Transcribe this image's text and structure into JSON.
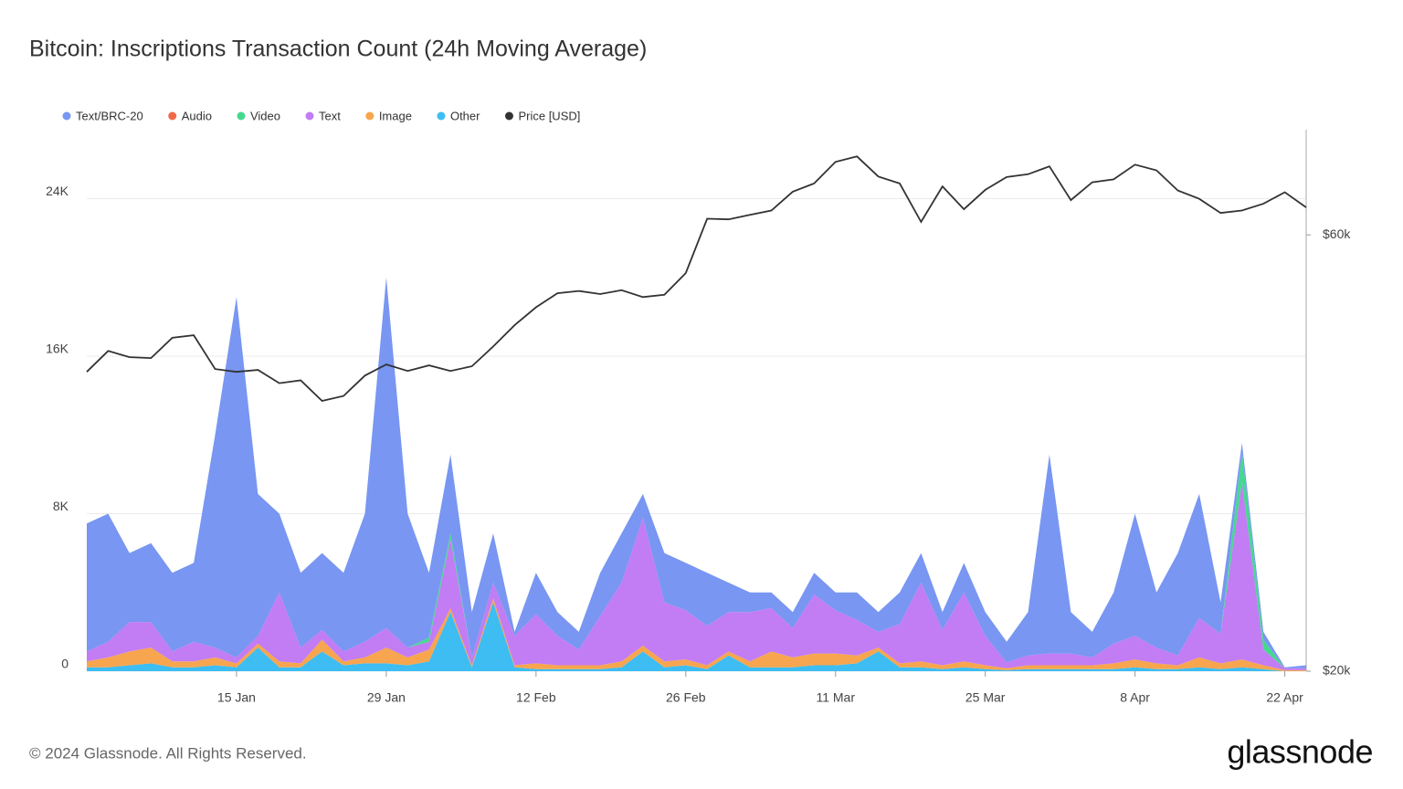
{
  "chart_data": {
    "type": "stacked-area",
    "title": "Bitcoin: Inscriptions Transaction Count (24h Moving Average)",
    "legend": "top-left",
    "grid": true,
    "categories": [
      null,
      null,
      null,
      null,
      null,
      null,
      null,
      "15 Jan",
      null,
      null,
      null,
      null,
      null,
      null,
      "29 Jan",
      null,
      null,
      null,
      null,
      null,
      null,
      "12 Feb",
      null,
      null,
      null,
      null,
      null,
      null,
      "26 Feb",
      null,
      null,
      null,
      null,
      null,
      null,
      "11 Mar",
      null,
      null,
      null,
      null,
      null,
      null,
      "25 Mar",
      null,
      null,
      null,
      null,
      null,
      null,
      "8 Apr",
      null,
      null,
      null,
      null,
      null,
      null,
      "22 Apr",
      null
    ],
    "ylim": [
      0,
      27500
    ],
    "yticks": [
      0,
      {
        "value": 8000,
        "label": "8K"
      },
      {
        "value": 16000,
        "label": "16K"
      },
      {
        "value": 24000,
        "label": "24K"
      }
    ],
    "y2lim": [
      20000,
      78200
    ],
    "y2log": true,
    "y2ticks": [
      {
        "value": 20000,
        "label": "$20k"
      },
      {
        "value": 60000,
        "label": "$60k"
      }
    ],
    "series": [
      {
        "name": "Text/BRC-20",
        "color": "#7896f2",
        "values": [
          6500,
          6500,
          3500,
          4000,
          4000,
          4000,
          10800,
          18300,
          7200,
          4000,
          3800,
          3900,
          4000,
          6500,
          17800,
          6800,
          3300,
          4000,
          2300,
          2500,
          200,
          2100,
          1200,
          900,
          2200,
          2500,
          1200,
          2500,
          2400,
          2700,
          1500,
          1000,
          800,
          800,
          1100,
          900,
          1400,
          1000,
          1600,
          1500,
          900,
          1500,
          1200,
          1050,
          2200,
          10100,
          2100,
          1300,
          2600,
          6200,
          2800,
          5200,
          6300,
          1600,
          500,
          400,
          50,
          150
        ]
      },
      {
        "name": "Audio",
        "color": "#f06a4a",
        "values": [
          0,
          0,
          0,
          0,
          0,
          0,
          0,
          0,
          0,
          0,
          0,
          0,
          0,
          0,
          0,
          0,
          0,
          0,
          0,
          0,
          0,
          0,
          0,
          0,
          0,
          0,
          0,
          0,
          0,
          0,
          0,
          0,
          0,
          0,
          0,
          0,
          0,
          0,
          0,
          0,
          0,
          0,
          0,
          0,
          0,
          0,
          0,
          0,
          0,
          0,
          0,
          0,
          0,
          0,
          0,
          0,
          0,
          0
        ]
      },
      {
        "name": "Video",
        "color": "#45d98f",
        "values": [
          0,
          0,
          0,
          0,
          0,
          0,
          0,
          0,
          0,
          0,
          0,
          0,
          0,
          0,
          0,
          0,
          200,
          300,
          0,
          0,
          0,
          0,
          0,
          0,
          0,
          0,
          0,
          0,
          0,
          0,
          0,
          0,
          0,
          0,
          0,
          0,
          0,
          0,
          0,
          0,
          0,
          0,
          0,
          0,
          0,
          0,
          0,
          0,
          0,
          0,
          0,
          0,
          0,
          0,
          1500,
          500,
          0,
          0
        ]
      },
      {
        "name": "Text",
        "color": "#c27cf4",
        "values": [
          500,
          800,
          1500,
          1300,
          500,
          1000,
          500,
          300,
          400,
          3500,
          800,
          500,
          500,
          800,
          1000,
          500,
          400,
          3500,
          400,
          800,
          1500,
          2500,
          1500,
          800,
          2500,
          4000,
          6500,
          3000,
          2500,
          2000,
          2000,
          2500,
          2200,
          1500,
          3000,
          2200,
          1800,
          800,
          2000,
          4000,
          1800,
          3500,
          1500,
          300,
          500,
          600,
          600,
          400,
          1000,
          1200,
          800,
          500,
          2000,
          1500,
          9000,
          800,
          100,
          100
        ]
      },
      {
        "name": "Image",
        "color": "#f7a54f",
        "values": [
          300,
          500,
          700,
          800,
          300,
          300,
          400,
          200,
          200,
          300,
          200,
          600,
          200,
          300,
          800,
          400,
          600,
          200,
          100,
          200,
          100,
          300,
          200,
          200,
          200,
          300,
          300,
          300,
          300,
          200,
          200,
          300,
          800,
          500,
          600,
          600,
          400,
          200,
          200,
          300,
          200,
          300,
          200,
          100,
          200,
          200,
          200,
          200,
          300,
          400,
          300,
          200,
          500,
          300,
          400,
          200,
          50,
          50
        ]
      },
      {
        "name": "Other",
        "color": "#3dbdf2",
        "values": [
          200,
          200,
          300,
          400,
          200,
          200,
          300,
          200,
          1200,
          200,
          200,
          1000,
          300,
          400,
          400,
          300,
          500,
          3000,
          200,
          3500,
          200,
          100,
          100,
          100,
          100,
          200,
          1000,
          200,
          300,
          100,
          800,
          200,
          200,
          200,
          300,
          300,
          400,
          1000,
          200,
          200,
          100,
          200,
          100,
          50,
          100,
          100,
          100,
          100,
          100,
          200,
          100,
          100,
          200,
          100,
          200,
          100,
          0,
          0
        ]
      },
      {
        "name": "Price [USD]",
        "color": "#333333",
        "axis": "y2",
        "values": [
          42500,
          44800,
          44100,
          44000,
          46300,
          46600,
          42800,
          42500,
          42700,
          41300,
          41600,
          39500,
          40000,
          42100,
          43300,
          42600,
          43200,
          42600,
          43100,
          45300,
          47800,
          50000,
          51800,
          52100,
          51700,
          52200,
          51300,
          51600,
          54500,
          62500,
          62400,
          63100,
          63800,
          66900,
          68300,
          72100,
          73100,
          69500,
          68300,
          62000,
          67800,
          64000,
          67200,
          69400,
          69900,
          71300,
          65500,
          68500,
          69000,
          71600,
          70600,
          67100,
          65700,
          63400,
          63800,
          64900,
          66800,
          64300
        ]
      }
    ]
  },
  "footer": {
    "copyright": "© 2024 Glassnode. All Rights Reserved.",
    "logo": "glassnode"
  }
}
